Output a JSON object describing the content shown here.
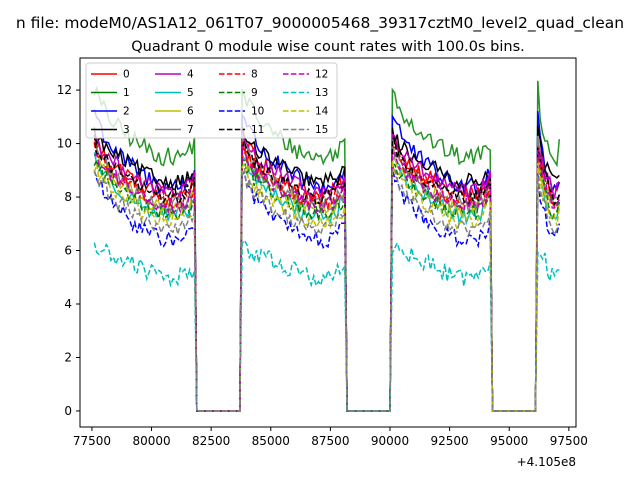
{
  "chart_data": {
    "type": "line",
    "suptitle": "n file: modeM0/AS1A12_061T07_9000005468_39317cztM0_level2_quad_clean",
    "title": "Quadrant 0 module wise count rates with 100.0s bins.",
    "xlabel": "",
    "ylabel": "",
    "x_offset_label": "+4.105e8",
    "xlim": [
      77000,
      97800
    ],
    "ylim": [
      -0.6,
      13.2
    ],
    "x_ticks": [
      77500,
      80000,
      82500,
      85000,
      87500,
      90000,
      92500,
      95000,
      97500
    ],
    "y_ticks": [
      0,
      2,
      4,
      6,
      8,
      10,
      12
    ],
    "gti": [
      [
        77600,
        81850
      ],
      [
        83800,
        88100
      ],
      [
        90100,
        94200
      ],
      [
        96200,
        97150
      ]
    ],
    "bin": 100,
    "series": [
      {
        "name": "0",
        "color": "#ff0000",
        "dash": "solid",
        "level": 8.3,
        "peak": 10.2,
        "amp": 0.35
      },
      {
        "name": "1",
        "color": "#008000",
        "dash": "solid",
        "level": 9.7,
        "peak": 12.1,
        "amp": 0.35
      },
      {
        "name": "2",
        "color": "#0000ff",
        "dash": "solid",
        "level": 8.6,
        "peak": 11.3,
        "amp": 0.35
      },
      {
        "name": "3",
        "color": "#000000",
        "dash": "solid",
        "level": 8.8,
        "peak": 10.4,
        "amp": 0.3
      },
      {
        "name": "4",
        "color": "#bf00bf",
        "dash": "solid",
        "level": 8.4,
        "peak": 10.3,
        "amp": 0.3
      },
      {
        "name": "5",
        "color": "#00bfbf",
        "dash": "solid",
        "level": 7.5,
        "peak": 9.6,
        "amp": 0.3
      },
      {
        "name": "6",
        "color": "#bfbf00",
        "dash": "solid",
        "level": 7.8,
        "peak": 9.8,
        "amp": 0.3
      },
      {
        "name": "7",
        "color": "#808080",
        "dash": "solid",
        "level": 7.9,
        "peak": 10.0,
        "amp": 0.3
      },
      {
        "name": "8",
        "color": "#ff0000",
        "dash": "dashed",
        "level": 8.0,
        "peak": 9.9,
        "amp": 0.3
      },
      {
        "name": "9",
        "color": "#008000",
        "dash": "dashed",
        "level": 7.6,
        "peak": 9.4,
        "amp": 0.3
      },
      {
        "name": "10",
        "color": "#0000ff",
        "dash": "dashed",
        "level": 6.6,
        "peak": 9.0,
        "amp": 0.3
      },
      {
        "name": "11",
        "color": "#000000",
        "dash": "dashed",
        "level": 8.2,
        "peak": 10.1,
        "amp": 0.3
      },
      {
        "name": "12",
        "color": "#bf00bf",
        "dash": "dashed",
        "level": 7.9,
        "peak": 9.7,
        "amp": 0.3
      },
      {
        "name": "13",
        "color": "#00bfbf",
        "dash": "dashed",
        "level": 5.2,
        "peak": 6.2,
        "amp": 0.35
      },
      {
        "name": "14",
        "color": "#bfbf00",
        "dash": "dashed",
        "level": 7.3,
        "peak": 9.2,
        "amp": 0.3
      },
      {
        "name": "15",
        "color": "#808080",
        "dash": "dashed",
        "level": 7.0,
        "peak": 9.0,
        "amp": 0.3
      }
    ]
  }
}
